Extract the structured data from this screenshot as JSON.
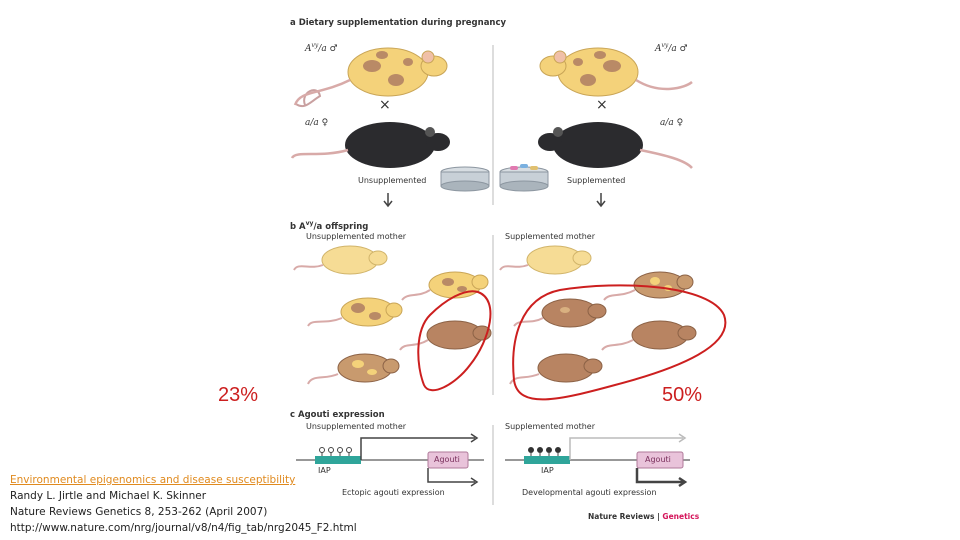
{
  "figure": {
    "section_a": "a  Dietary supplementation during pregnancy",
    "section_b": "b  A",
    "section_b_rest": "/a offspring",
    "section_b_sup": "vy",
    "section_c": "c  Agouti expression",
    "male_genotype_left": "A",
    "male_genotype_right": "A",
    "genotype_sup": "vy",
    "genotype_rest_male": "/a ♂",
    "female_genotype_left": "a/a ♀",
    "female_genotype_right": "a/a ♀",
    "cross_symbol": "×",
    "unsupplemented_label": "Unsupplemented",
    "supplemented_label": "Supplemented",
    "unsupplemented_mother": "Unsupplemented mother",
    "supplemented_mother": "Supplemented mother",
    "iap_label": "IAP",
    "agouti_label": "Agouti",
    "ectopic_label": "Ectopic agouti expression",
    "developmental_label": "Developmental agouti expression",
    "journal_name": "Nature Reviews | ",
    "journal_section": "Genetics"
  },
  "annotations": {
    "left_percent": "23%",
    "right_percent": "50%",
    "circle_color": "#cc1f1f"
  },
  "citation": {
    "link_text": "Environmental epigenomics and disease susceptibility",
    "authors": "Randy L. Jirtle and Michael K. Skinner",
    "journal": "Nature Reviews Genetics 8, 253-262 (April 2007)",
    "url": "http://www.nature.com/nrg/journal/v8/n4/fig_tab/nrg2045_F2.html"
  }
}
